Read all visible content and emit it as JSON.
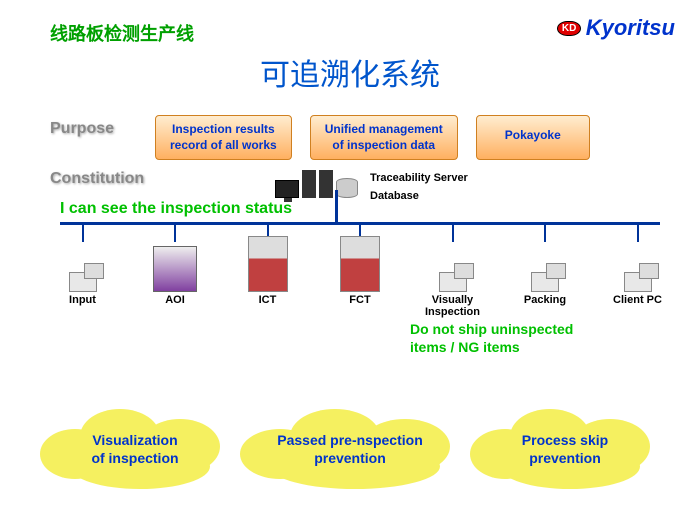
{
  "header": {
    "title_cn": "线路板检测生产线",
    "logo_badge": "KD",
    "logo_text": "Kyoritsu"
  },
  "main_title": "可追溯化系统",
  "section_labels": {
    "purpose": "Purpose",
    "constitution": "Constitution"
  },
  "purpose_boxes": [
    "Inspection results\nrecord of all works",
    "Unified management\nof inspection data",
    "Pokayoke"
  ],
  "server": {
    "label1": "Traceability Server",
    "label2": "Database"
  },
  "status_banner": "I can see the inspection status",
  "stations": [
    {
      "label": "Input",
      "kind": "pc"
    },
    {
      "label": "AOI",
      "kind": "aoi"
    },
    {
      "label": "ICT",
      "kind": "tester"
    },
    {
      "label": "FCT",
      "kind": "tester"
    },
    {
      "label": "Visually\nInspection",
      "kind": "pc"
    },
    {
      "label": "Packing",
      "kind": "pc"
    },
    {
      "label": "Client PC",
      "kind": "pc"
    }
  ],
  "ng_banner": "Do not ship uninspected\nitems / NG items",
  "clouds": [
    "Visualization\nof inspection",
    "Passed pre-nspection\nprevention",
    "Process skip\nprevention"
  ],
  "colors": {
    "green": "#00a000",
    "blue": "#0033cc",
    "title_blue": "#0055cc",
    "cloud_fill": "#f5f060",
    "orange_box": "#ffb060",
    "line": "#003399"
  }
}
